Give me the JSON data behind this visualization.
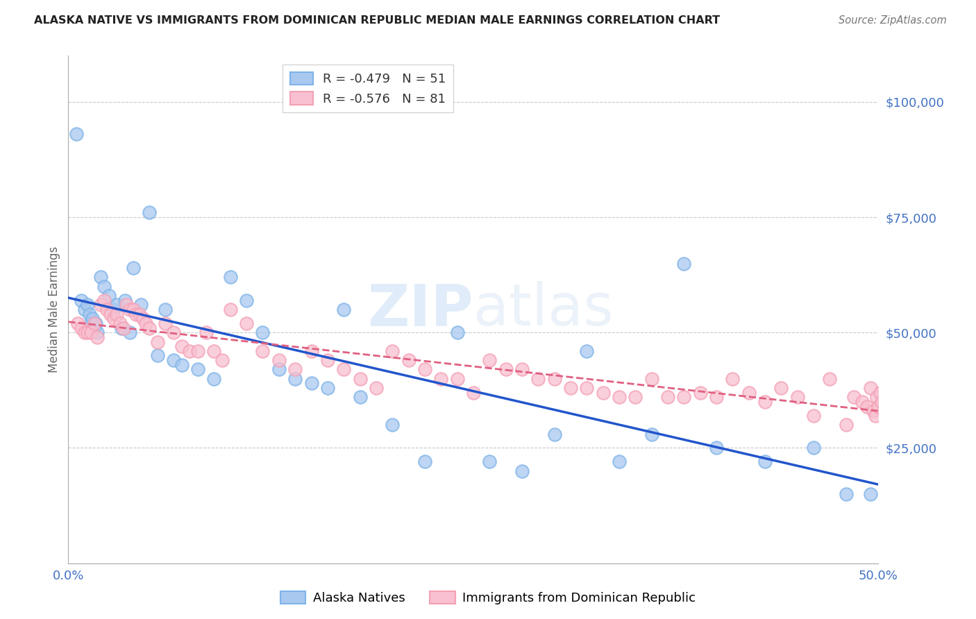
{
  "title": "ALASKA NATIVE VS IMMIGRANTS FROM DOMINICAN REPUBLIC MEDIAN MALE EARNINGS CORRELATION CHART",
  "source": "Source: ZipAtlas.com",
  "ylabel": "Median Male Earnings",
  "xlim": [
    0.0,
    0.5
  ],
  "ylim": [
    0,
    110000
  ],
  "yticks": [
    0,
    25000,
    50000,
    75000,
    100000
  ],
  "ytick_labels": [
    "",
    "$25,000",
    "$50,000",
    "$75,000",
    "$100,000"
  ],
  "xticks": [
    0.0,
    0.1,
    0.2,
    0.3,
    0.4,
    0.5
  ],
  "xtick_labels": [
    "0.0%",
    "",
    "",
    "",
    "",
    "50.0%"
  ],
  "blue_color_face": "#a8c8f0",
  "blue_color_edge": "#7eb3e8",
  "pink_color_face": "#f8c0d0",
  "pink_color_edge": "#f4a0b5",
  "line_blue": "#2255cc",
  "line_pink": "#e06080",
  "axis_label_color": "#4472c4",
  "grid_color": "#c8c8c8",
  "watermark_color": "#d0e4f7",
  "legend_R_color": "#e06080",
  "legend_N_color": "#4472c4",
  "blue_scatter_x": [
    0.005,
    0.008,
    0.01,
    0.012,
    0.013,
    0.014,
    0.015,
    0.016,
    0.017,
    0.018,
    0.02,
    0.022,
    0.025,
    0.028,
    0.03,
    0.033,
    0.035,
    0.038,
    0.04,
    0.045,
    0.05,
    0.055,
    0.06,
    0.065,
    0.07,
    0.08,
    0.09,
    0.1,
    0.11,
    0.12,
    0.13,
    0.14,
    0.15,
    0.16,
    0.17,
    0.18,
    0.2,
    0.22,
    0.24,
    0.26,
    0.28,
    0.3,
    0.32,
    0.34,
    0.36,
    0.38,
    0.4,
    0.43,
    0.46,
    0.48,
    0.495
  ],
  "blue_scatter_y": [
    93000,
    57000,
    55000,
    56000,
    54000,
    52000,
    53000,
    51000,
    52000,
    50000,
    62000,
    60000,
    58000,
    55000,
    56000,
    51000,
    57000,
    50000,
    64000,
    56000,
    76000,
    45000,
    55000,
    44000,
    43000,
    42000,
    40000,
    62000,
    57000,
    50000,
    42000,
    40000,
    39000,
    38000,
    55000,
    36000,
    30000,
    22000,
    50000,
    22000,
    20000,
    28000,
    46000,
    22000,
    28000,
    65000,
    25000,
    22000,
    25000,
    15000,
    15000
  ],
  "pink_scatter_x": [
    0.006,
    0.008,
    0.01,
    0.012,
    0.014,
    0.016,
    0.018,
    0.02,
    0.022,
    0.024,
    0.026,
    0.028,
    0.03,
    0.032,
    0.034,
    0.036,
    0.038,
    0.04,
    0.042,
    0.044,
    0.046,
    0.048,
    0.05,
    0.055,
    0.06,
    0.065,
    0.07,
    0.075,
    0.08,
    0.085,
    0.09,
    0.095,
    0.1,
    0.11,
    0.12,
    0.13,
    0.14,
    0.15,
    0.16,
    0.17,
    0.18,
    0.19,
    0.2,
    0.21,
    0.22,
    0.23,
    0.24,
    0.25,
    0.26,
    0.27,
    0.28,
    0.29,
    0.3,
    0.31,
    0.32,
    0.33,
    0.34,
    0.35,
    0.36,
    0.37,
    0.38,
    0.39,
    0.4,
    0.41,
    0.42,
    0.43,
    0.44,
    0.45,
    0.46,
    0.47,
    0.48,
    0.485,
    0.49,
    0.493,
    0.495,
    0.497,
    0.498,
    0.499,
    0.5,
    0.501,
    0.502
  ],
  "pink_scatter_y": [
    52000,
    51000,
    50000,
    50000,
    50000,
    52000,
    49000,
    56000,
    57000,
    55000,
    54000,
    53000,
    54000,
    52000,
    51000,
    56000,
    55000,
    55000,
    54000,
    54000,
    53000,
    52000,
    51000,
    48000,
    52000,
    50000,
    47000,
    46000,
    46000,
    50000,
    46000,
    44000,
    55000,
    52000,
    46000,
    44000,
    42000,
    46000,
    44000,
    42000,
    40000,
    38000,
    46000,
    44000,
    42000,
    40000,
    40000,
    37000,
    44000,
    42000,
    42000,
    40000,
    40000,
    38000,
    38000,
    37000,
    36000,
    36000,
    40000,
    36000,
    36000,
    37000,
    36000,
    40000,
    37000,
    35000,
    38000,
    36000,
    32000,
    40000,
    30000,
    36000,
    35000,
    34000,
    38000,
    33000,
    32000,
    36000,
    34000,
    37000,
    35000
  ]
}
